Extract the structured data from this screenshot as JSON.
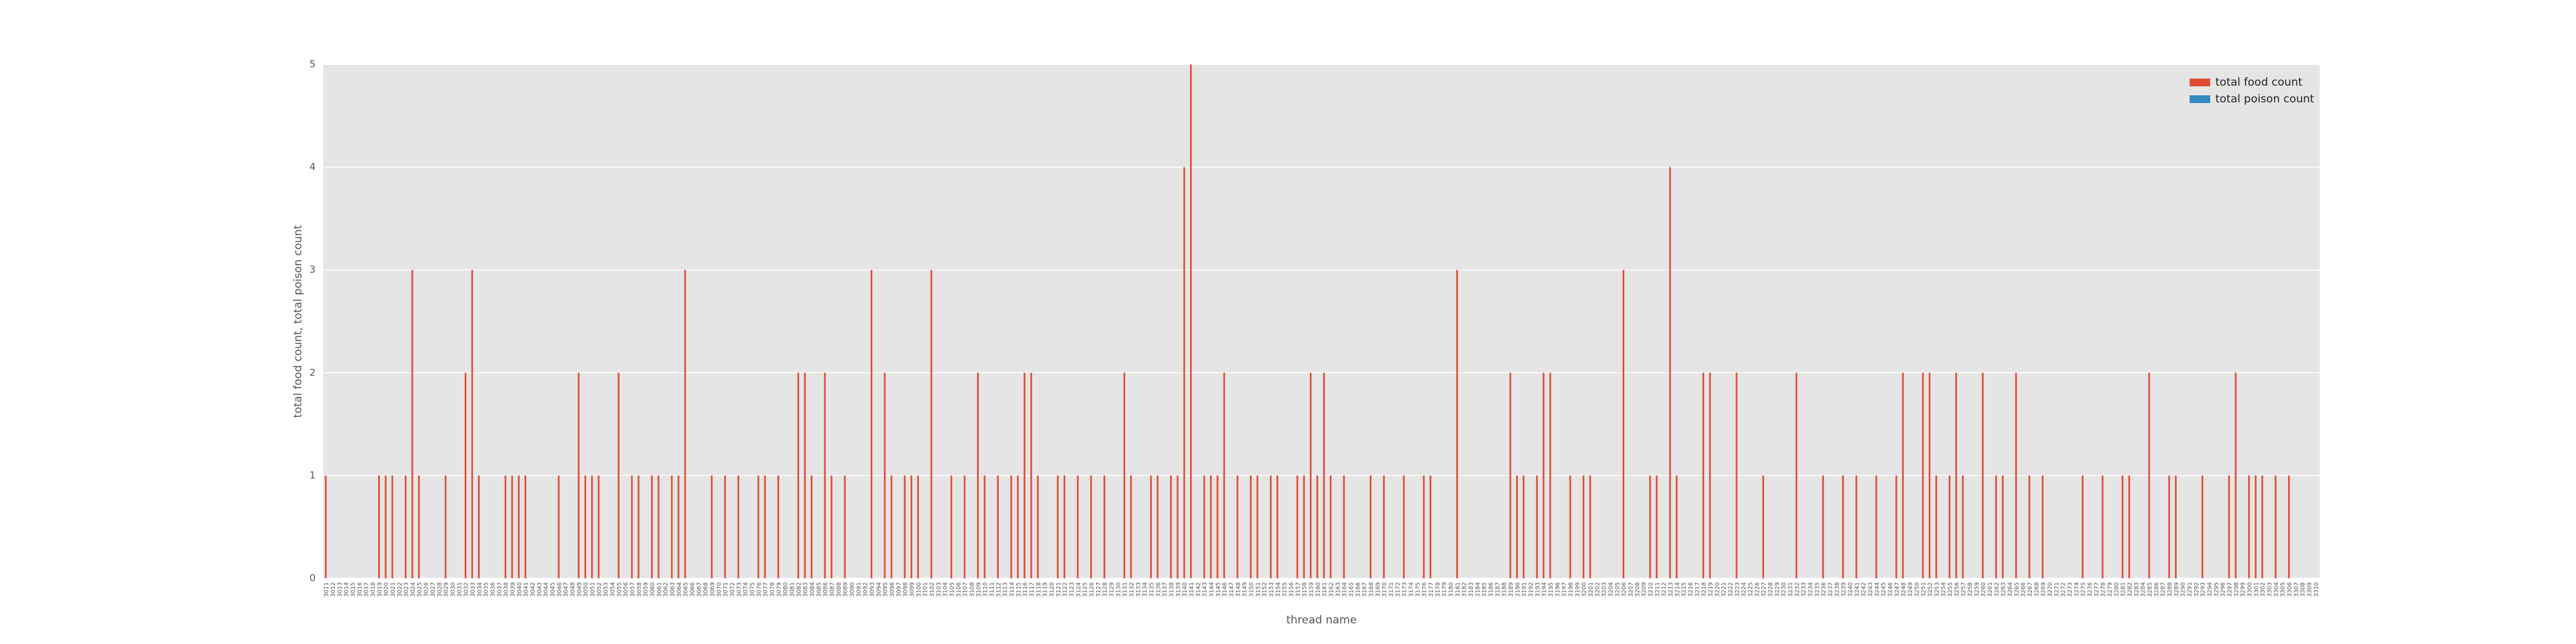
{
  "chart_data": {
    "type": "bar",
    "xlabel": "thread name",
    "ylabel": "total food count, total poison count",
    "categories": [
      "3011",
      "3012",
      "3013",
      "3014",
      "3015",
      "3016",
      "3017",
      "3018",
      "3019",
      "3020",
      "3021",
      "3022",
      "3023",
      "3024",
      "3025",
      "3026",
      "3027",
      "3028",
      "3029",
      "3030",
      "3031",
      "3032",
      "3033",
      "3034",
      "3035",
      "3036",
      "3037",
      "3038",
      "3039",
      "3040",
      "3041",
      "3042",
      "3043",
      "3044",
      "3045",
      "3046",
      "3047",
      "3048",
      "3049",
      "3050",
      "3051",
      "3052",
      "3053",
      "3054",
      "3055",
      "3056",
      "3057",
      "3058",
      "3059",
      "3060",
      "3061",
      "3062",
      "3063",
      "3064",
      "3065",
      "3066",
      "3067",
      "3068",
      "3069",
      "3070",
      "3071",
      "3072",
      "3073",
      "3074",
      "3075",
      "3076",
      "3077",
      "3078",
      "3079",
      "3080",
      "3081",
      "3082",
      "3083",
      "3084",
      "3085",
      "3086",
      "3087",
      "3088",
      "3089",
      "3090",
      "3091",
      "3092",
      "3093",
      "3094",
      "3095",
      "3096",
      "3097",
      "3098",
      "3099",
      "3100",
      "3101",
      "3102",
      "3103",
      "3104",
      "3105",
      "3106",
      "3107",
      "3108",
      "3109",
      "3110",
      "3111",
      "3112",
      "3113",
      "3114",
      "3115",
      "3116",
      "3117",
      "3118",
      "3119",
      "3120",
      "3121",
      "3122",
      "3123",
      "3124",
      "3125",
      "3126",
      "3127",
      "3128",
      "3129",
      "3130",
      "3131",
      "3132",
      "3133",
      "3134",
      "3135",
      "3136",
      "3137",
      "3138",
      "3139",
      "3140",
      "3141",
      "3142",
      "3143",
      "3144",
      "3145",
      "3146",
      "3147",
      "3148",
      "3149",
      "3150",
      "3151",
      "3152",
      "3153",
      "3154",
      "3155",
      "3156",
      "3157",
      "3158",
      "3159",
      "3160",
      "3161",
      "3162",
      "3163",
      "3164",
      "3165",
      "3166",
      "3167",
      "3168",
      "3169",
      "3170",
      "3171",
      "3172",
      "3173",
      "3174",
      "3175",
      "3176",
      "3177",
      "3178",
      "3179",
      "3180",
      "3181",
      "3182",
      "3183",
      "3184",
      "3185",
      "3186",
      "3187",
      "3188",
      "3189",
      "3190",
      "3191",
      "3192",
      "3193",
      "3194",
      "3195",
      "3196",
      "3197",
      "3198",
      "3199",
      "3200",
      "3201",
      "3202",
      "3203",
      "3204",
      "3205",
      "3206",
      "3207",
      "3208",
      "3209",
      "3210",
      "3211",
      "3212",
      "3213",
      "3214",
      "3215",
      "3216",
      "3217",
      "3218",
      "3219",
      "3220",
      "3221",
      "3222",
      "3223",
      "3224",
      "3225",
      "3226",
      "3227",
      "3228",
      "3229",
      "3230",
      "3231",
      "3232",
      "3233",
      "3234",
      "3235",
      "3236",
      "3237",
      "3238",
      "3239",
      "3240",
      "3241",
      "3242",
      "3243",
      "3244",
      "3245",
      "3246",
      "3247",
      "3248",
      "3249",
      "3250",
      "3251",
      "3252",
      "3253",
      "3254",
      "3255",
      "3256",
      "3257",
      "3258",
      "3259",
      "3260",
      "3261",
      "3262",
      "3263",
      "3264",
      "3265",
      "3266",
      "3267",
      "3268",
      "3269",
      "3270",
      "3271",
      "3272",
      "3273",
      "3274",
      "3275",
      "3276",
      "3277",
      "3278",
      "3279",
      "3280",
      "3281",
      "3282",
      "3283",
      "3284",
      "3285",
      "3286",
      "3287",
      "3288",
      "3289",
      "3290",
      "3291",
      "3292",
      "3293",
      "3294",
      "3295",
      "3296",
      "3297",
      "3298",
      "3299",
      "3300",
      "3301",
      "3302",
      "3303",
      "3304",
      "3305",
      "3306",
      "3307",
      "3308",
      "3309",
      "3310"
    ],
    "series": [
      {
        "name": "total food count",
        "color": "#e24a33",
        "values": [
          1,
          0,
          0,
          0,
          0,
          0,
          0,
          0,
          1,
          1,
          1,
          0,
          1,
          3,
          1,
          0,
          0,
          0,
          1,
          0,
          0,
          2,
          3,
          1,
          0,
          0,
          0,
          1,
          1,
          1,
          1,
          0,
          0,
          0,
          0,
          1,
          0,
          0,
          2,
          1,
          1,
          1,
          0,
          0,
          2,
          0,
          1,
          1,
          0,
          1,
          1,
          0,
          1,
          1,
          3,
          0,
          0,
          0,
          1,
          0,
          1,
          0,
          1,
          0,
          0,
          1,
          1,
          0,
          1,
          0,
          0,
          2,
          2,
          1,
          0,
          2,
          1,
          0,
          1,
          0,
          0,
          0,
          3,
          0,
          2,
          1,
          0,
          1,
          1,
          1,
          0,
          3,
          0,
          0,
          1,
          0,
          1,
          0,
          2,
          1,
          0,
          1,
          0,
          1,
          1,
          2,
          2,
          1,
          0,
          0,
          1,
          1,
          0,
          1,
          0,
          1,
          0,
          1,
          0,
          0,
          2,
          1,
          0,
          0,
          1,
          1,
          0,
          1,
          1,
          4,
          5,
          0,
          1,
          1,
          1,
          2,
          0,
          1,
          0,
          1,
          1,
          0,
          1,
          1,
          0,
          0,
          1,
          1,
          2,
          1,
          2,
          1,
          0,
          1,
          0,
          0,
          0,
          1,
          0,
          1,
          0,
          0,
          1,
          0,
          0,
          1,
          1,
          0,
          0,
          0,
          3,
          0,
          0,
          0,
          0,
          0,
          0,
          0,
          2,
          1,
          1,
          0,
          1,
          2,
          2,
          0,
          0,
          1,
          0,
          1,
          1,
          0,
          0,
          0,
          0,
          3,
          0,
          0,
          0,
          1,
          1,
          0,
          4,
          1,
          0,
          0,
          0,
          2,
          2,
          0,
          0,
          0,
          2,
          0,
          0,
          0,
          1,
          0,
          0,
          0,
          0,
          2,
          0,
          0,
          0,
          1,
          0,
          0,
          1,
          0,
          1,
          0,
          0,
          1,
          0,
          0,
          1,
          2,
          0,
          0,
          2,
          2,
          1,
          0,
          1,
          2,
          1,
          0,
          0,
          2,
          0,
          1,
          1,
          0,
          2,
          0,
          1,
          0,
          1,
          0,
          0,
          0,
          0,
          0,
          1,
          0,
          0,
          1,
          0,
          0,
          1,
          1,
          0,
          0,
          2,
          0,
          0,
          1,
          1,
          0,
          0,
          0,
          1,
          0,
          0,
          0,
          1,
          2,
          0,
          1,
          1,
          1,
          0,
          1,
          0,
          1,
          0,
          0,
          0,
          0
        ]
      },
      {
        "name": "total poison count",
        "color": "#348abd",
        "values": [
          0,
          0,
          0,
          0,
          0,
          0,
          0,
          0,
          0,
          0,
          0,
          0,
          0,
          0,
          0,
          0,
          0,
          0,
          0,
          0,
          0,
          0,
          0,
          0,
          0,
          0,
          0,
          0,
          0,
          0,
          0,
          0,
          0,
          0,
          0,
          0,
          0,
          0,
          0,
          0,
          0,
          0,
          0,
          0,
          0,
          0,
          0,
          0,
          0,
          0,
          0,
          0,
          0,
          0,
          0,
          0,
          0,
          0,
          0,
          0,
          0,
          0,
          0,
          0,
          0,
          0,
          0,
          0,
          0,
          0,
          0,
          0,
          0,
          0,
          0,
          0,
          0,
          0,
          0,
          0,
          0,
          0,
          0,
          0,
          0,
          0,
          0,
          0,
          0,
          0,
          0,
          0,
          0,
          0,
          0,
          0,
          0,
          0,
          0,
          0,
          0,
          0,
          0,
          0,
          0,
          0,
          0,
          0,
          0,
          0,
          0,
          0,
          0,
          0,
          0,
          0,
          0,
          0,
          0,
          0,
          0,
          0,
          0,
          0,
          0,
          0,
          0,
          0,
          0,
          0,
          0,
          0,
          0,
          0,
          0,
          0,
          0,
          0,
          0,
          0,
          0,
          0,
          0,
          0,
          0,
          0,
          0,
          0,
          0,
          0,
          0,
          0,
          0,
          0,
          0,
          0,
          0,
          0,
          0,
          0,
          0,
          0,
          0,
          0,
          0,
          0,
          0,
          0,
          0,
          0,
          0,
          0,
          0,
          0,
          0,
          0,
          0,
          0,
          0,
          0,
          0,
          0,
          0,
          0,
          0,
          0,
          0,
          0,
          0,
          0,
          0,
          0,
          0,
          0,
          0,
          0,
          0,
          0,
          0,
          0,
          0,
          0,
          0,
          0,
          0,
          0,
          0,
          0,
          0,
          0,
          0,
          0,
          0,
          0,
          0,
          0,
          0,
          0,
          0,
          0,
          0,
          0,
          0,
          0,
          0,
          0,
          0,
          0,
          0,
          0,
          0,
          0,
          0,
          0,
          0,
          0,
          0,
          0,
          0,
          0,
          0,
          0,
          0,
          0,
          0,
          0,
          0,
          0,
          0,
          0,
          0,
          0,
          0,
          0,
          0,
          0,
          0,
          0,
          0,
          0,
          0,
          0,
          0,
          0,
          0,
          0,
          0,
          0,
          0,
          0,
          0,
          0,
          0,
          0,
          0,
          0,
          0,
          0,
          0,
          0,
          0,
          0,
          0,
          0,
          0,
          0,
          0,
          0,
          0,
          0,
          0,
          0,
          0,
          0,
          0,
          0,
          0,
          0,
          0,
          0
        ]
      }
    ],
    "ylim": [
      0,
      5
    ],
    "yticks": [
      0,
      1,
      2,
      3,
      4,
      5
    ],
    "grid": true,
    "legend": "upper right"
  }
}
